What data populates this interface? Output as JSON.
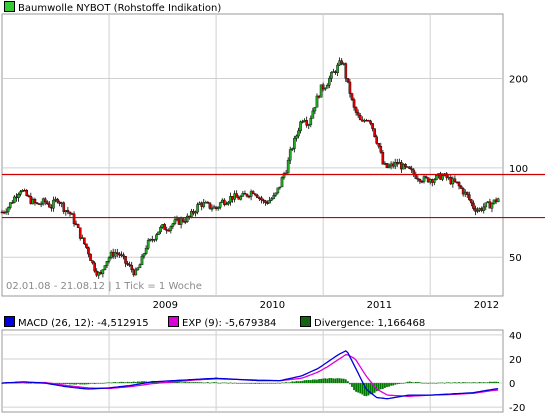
{
  "colors": {
    "candle_up": "#22aa22",
    "candle_down": "#dd0000",
    "resistance": "#cc0000",
    "macd": "#0000dd",
    "exp": "#dd00dd",
    "divergence": "#007700",
    "grid": "#d0d0d0"
  },
  "main_chart": {
    "legend_label": "Baumwolle NYBOT (Rohstoffe Indikation)",
    "legend_color": "#33cc33",
    "info_label": "02.01.08 - 21.08.12 | 1 Tick = 1 Woche"
  },
  "macd_chart": {
    "legend": [
      {
        "label": "MACD (26, 12): -4,512915",
        "color": "#0000dd"
      },
      {
        "label": "EXP (9): -5,679384",
        "color": "#dd00dd"
      },
      {
        "label": "Divergence: 1,166468",
        "color": "#116611"
      }
    ]
  },
  "chart_data": [
    {
      "type": "candlestick",
      "title": "Baumwolle NYBOT (Rohstoffe Indikation)",
      "x_tick_labels": [
        "2009",
        "2010",
        "2011",
        "2012"
      ],
      "y_ticks": [
        50,
        100,
        200
      ],
      "y_scale": "log",
      "ylim": [
        37,
        330
      ],
      "xlim": [
        2008.0,
        2012.68
      ],
      "grid": true,
      "horizontal_lines": [
        95,
        68
      ],
      "series": [
        {
          "name": "Baumwolle NYBOT",
          "x": [
            2008.0,
            2008.06,
            2008.12,
            2008.17,
            2008.22,
            2008.28,
            2008.33,
            2008.4,
            2008.46,
            2008.52,
            2008.58,
            2008.64,
            2008.7,
            2008.75,
            2008.8,
            2008.85,
            2008.88,
            2008.92,
            2008.96,
            2009.0,
            2009.05,
            2009.1,
            2009.15,
            2009.2,
            2009.25,
            2009.3,
            2009.35,
            2009.4,
            2009.45,
            2009.5,
            2009.55,
            2009.6,
            2009.65,
            2009.7,
            2009.75,
            2009.8,
            2009.85,
            2009.9,
            2009.95,
            2010.0,
            2010.05,
            2010.1,
            2010.15,
            2010.2,
            2010.25,
            2010.3,
            2010.35,
            2010.4,
            2010.45,
            2010.5,
            2010.55,
            2010.6,
            2010.63,
            2010.66,
            2010.7,
            2010.74,
            2010.78,
            2010.82,
            2010.86,
            2010.9,
            2010.94,
            2010.98,
            2011.02,
            2011.06,
            2011.1,
            2011.14,
            2011.18,
            2011.2,
            2011.22,
            2011.25,
            2011.28,
            2011.32,
            2011.36,
            2011.4,
            2011.44,
            2011.48,
            2011.52,
            2011.56,
            2011.6,
            2011.65,
            2011.7,
            2011.75,
            2011.8,
            2011.85,
            2011.9,
            2011.95,
            2012.0,
            2012.05,
            2012.1,
            2012.15,
            2012.2,
            2012.25,
            2012.3,
            2012.35,
            2012.4,
            2012.45,
            2012.5,
            2012.55,
            2012.6,
            2012.64
          ],
          "close": [
            71,
            74,
            80,
            85,
            81,
            77,
            75,
            77,
            74,
            79,
            73,
            70,
            63,
            57,
            53,
            47,
            45,
            43,
            48,
            50,
            52,
            51,
            48,
            46,
            44,
            48,
            55,
            57,
            61,
            63,
            63,
            65,
            66,
            67,
            68,
            72,
            76,
            75,
            74,
            73,
            77,
            78,
            80,
            79,
            80,
            82,
            84,
            80,
            76,
            78,
            80,
            88,
            95,
            100,
            115,
            125,
            140,
            150,
            140,
            155,
            170,
            185,
            190,
            200,
            210,
            220,
            230,
            215,
            195,
            180,
            160,
            150,
            140,
            148,
            145,
            130,
            118,
            102,
            100,
            102,
            104,
            100,
            98,
            95,
            93,
            91,
            92,
            92,
            94,
            93,
            90,
            88,
            84,
            80,
            74,
            72,
            74,
            75,
            77,
            79
          ]
        }
      ]
    },
    {
      "type": "line",
      "title": "MACD (26, 12)",
      "y_ticks": [
        40,
        20,
        0,
        -20
      ],
      "ylim": [
        -24,
        44
      ],
      "series": [
        {
          "name": "MACD (26, 12)",
          "x": [
            2008.0,
            2008.2,
            2008.4,
            2008.6,
            2008.8,
            2009.0,
            2009.2,
            2009.4,
            2009.6,
            2009.8,
            2010.0,
            2010.2,
            2010.4,
            2010.6,
            2010.8,
            2010.95,
            2011.05,
            2011.15,
            2011.22,
            2011.3,
            2011.4,
            2011.5,
            2011.6,
            2011.8,
            2012.0,
            2012.2,
            2012.4,
            2012.6,
            2012.64
          ],
          "values": [
            0,
            1,
            0,
            -3,
            -5,
            -4,
            -2,
            1,
            2,
            3,
            4,
            3,
            2,
            2,
            6,
            12,
            18,
            24,
            27,
            13,
            -5,
            -12,
            -13,
            -10,
            -10,
            -9,
            -8,
            -5,
            -4.5
          ]
        },
        {
          "name": "EXP (9)",
          "x": [
            2008.0,
            2008.2,
            2008.4,
            2008.6,
            2008.8,
            2009.0,
            2009.2,
            2009.4,
            2009.6,
            2009.8,
            2010.0,
            2010.2,
            2010.4,
            2010.6,
            2010.8,
            2010.95,
            2011.05,
            2011.15,
            2011.22,
            2011.3,
            2011.4,
            2011.5,
            2011.6,
            2011.8,
            2012.0,
            2012.2,
            2012.4,
            2012.6,
            2012.64
          ],
          "values": [
            0,
            0.5,
            0.5,
            -2,
            -4,
            -4.5,
            -3,
            -0.5,
            1,
            2.5,
            3.5,
            3,
            2.5,
            2,
            4,
            9,
            14,
            20,
            24,
            20,
            6,
            -5,
            -10,
            -11,
            -10,
            -9.5,
            -8.5,
            -6,
            -5.7
          ]
        },
        {
          "name": "Divergence",
          "type": "bar",
          "x": [
            2008.0,
            2008.2,
            2008.4,
            2008.6,
            2008.8,
            2009.0,
            2009.2,
            2009.4,
            2009.6,
            2009.8,
            2010.0,
            2010.2,
            2010.4,
            2010.6,
            2010.8,
            2010.95,
            2011.05,
            2011.15,
            2011.22,
            2011.3,
            2011.4,
            2011.5,
            2011.6,
            2011.8,
            2012.0,
            2012.2,
            2012.4,
            2012.6,
            2012.64
          ],
          "values": [
            0,
            0.5,
            -0.5,
            -1,
            -1,
            0.5,
            1,
            1.5,
            1,
            0.5,
            0.5,
            0,
            -0.5,
            0,
            2,
            3,
            4,
            4,
            3,
            -7,
            -11,
            -7,
            -3,
            1,
            0,
            0.5,
            0.5,
            1,
            1.2
          ]
        }
      ]
    }
  ]
}
